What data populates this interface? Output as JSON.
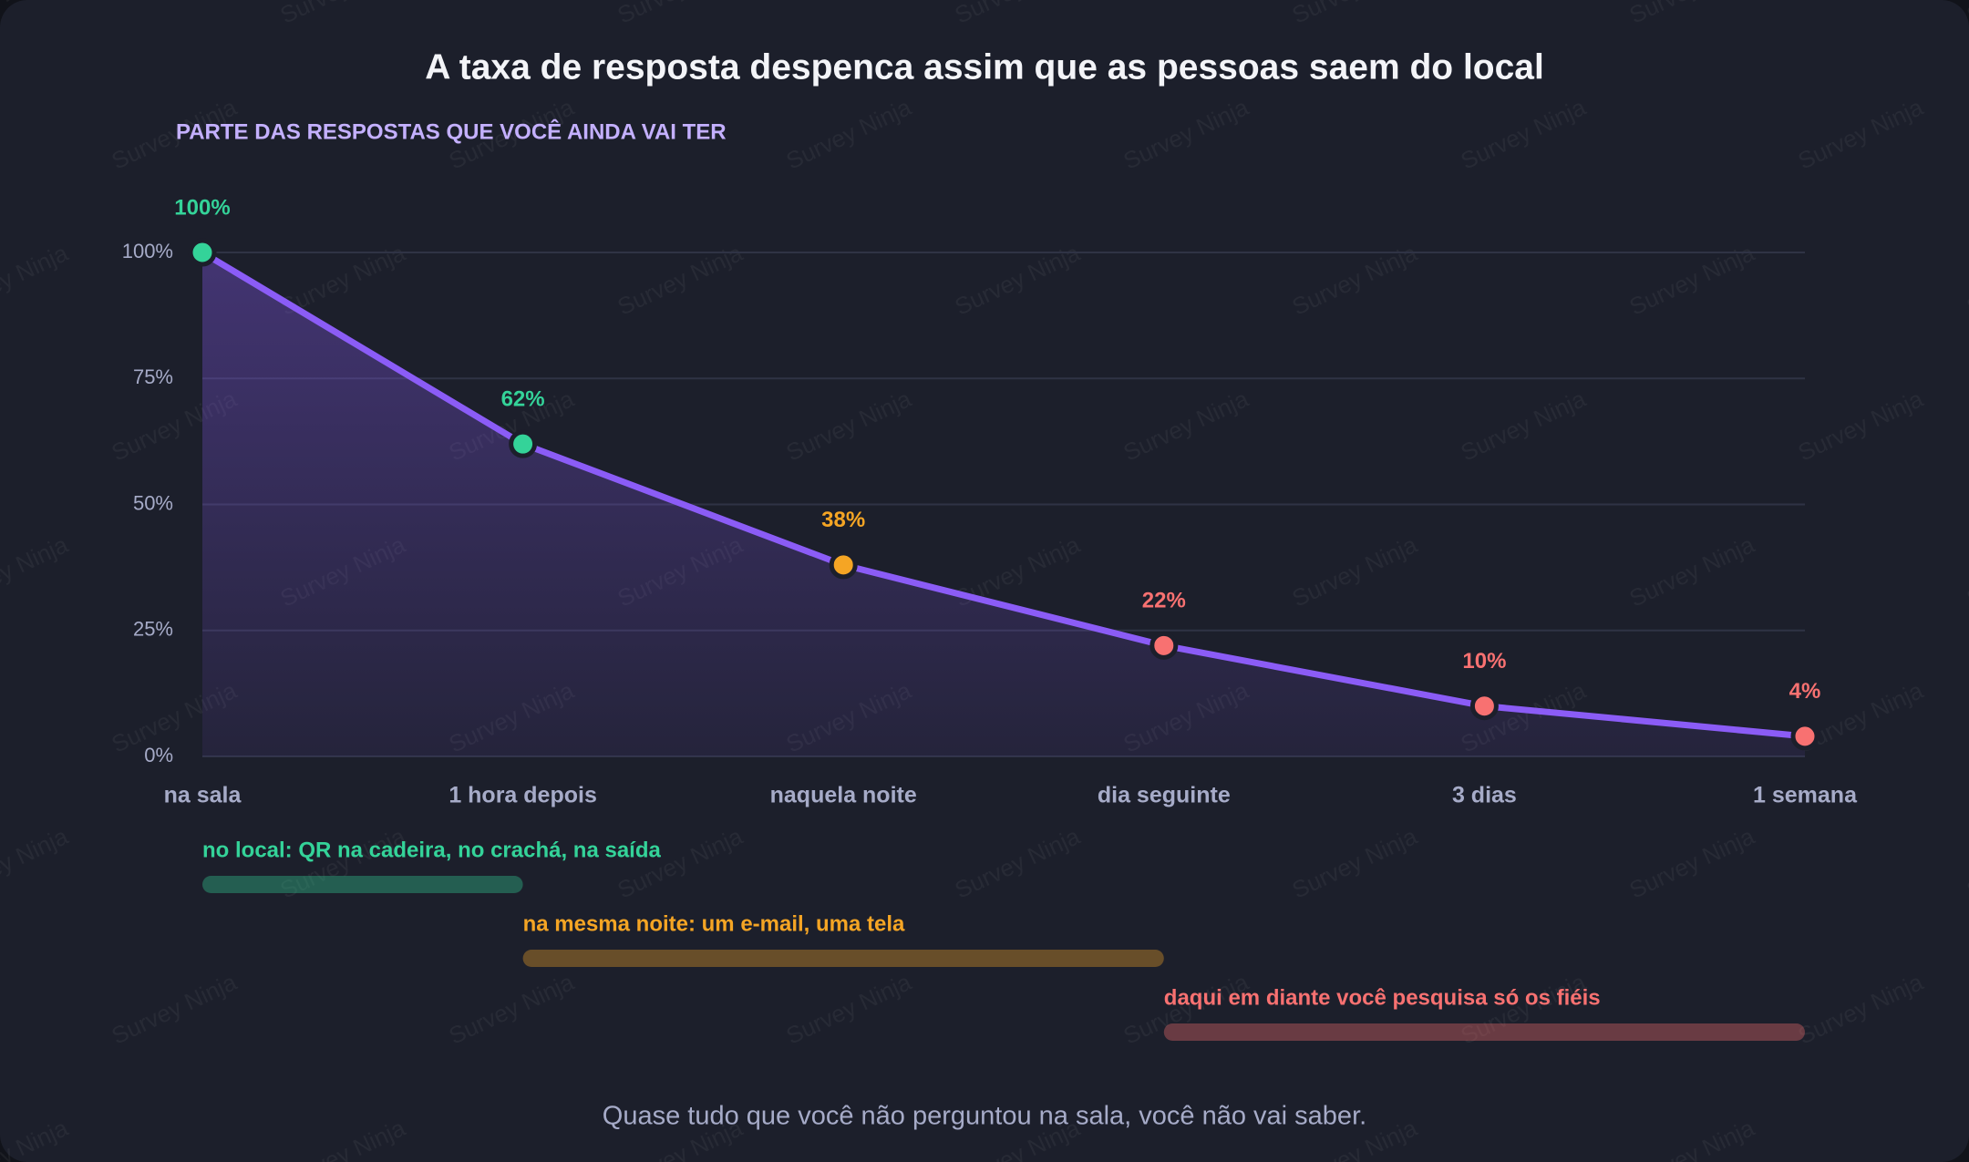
{
  "chart_data": {
    "type": "line",
    "title": "A taxa de resposta despenca assim que as pessoas saem do local",
    "subtitle": "PARTE DAS RESPOSTAS QUE VOCÊ AINDA VAI TER",
    "categories": [
      "na sala",
      "1 hora depois",
      "naquela noite",
      "dia seguinte",
      "3 dias",
      "1 semana"
    ],
    "series": [
      {
        "color": "#8b5cf6",
        "values": [
          100,
          62,
          38,
          22,
          10,
          4
        ],
        "value_labels": [
          "100%",
          "62%",
          "38%",
          "22%",
          "10%",
          "4%"
        ],
        "point_colors": [
          "#34d399",
          "#34d399",
          "#f5a524",
          "#f87171",
          "#f87171",
          "#f87171"
        ]
      }
    ],
    "ylim": [
      0,
      100
    ],
    "yticks": [
      {
        "value": 0,
        "label": "0%"
      },
      {
        "value": 25,
        "label": "25%"
      },
      {
        "value": 50,
        "label": "50%"
      },
      {
        "value": 75,
        "label": "75%"
      },
      {
        "value": 100,
        "label": "100%"
      }
    ],
    "grid": true,
    "annotations": [
      {
        "text": "no local: QR na cadeira, no crachá, na saída",
        "color": "#34d399",
        "start": "na sala",
        "end": "1 hora depois"
      },
      {
        "text": "na mesma noite: um e-mail, uma tela",
        "color": "#f5a524",
        "start": "1 hora depois",
        "end": "dia seguinte"
      },
      {
        "text": "daqui em diante você pesquisa só os fiéis",
        "color": "#f87171",
        "start": "dia seguinte",
        "end": "1 semana"
      }
    ],
    "footnote": "Quase tudo que você não perguntou na sala, você não vai saber.",
    "watermark": "Survey Ninja"
  }
}
